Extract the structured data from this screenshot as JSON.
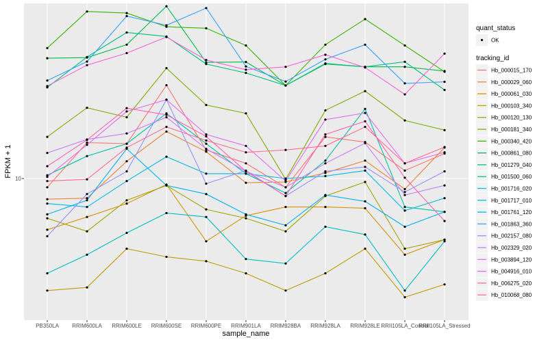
{
  "chart_data": {
    "type": "line",
    "title": "",
    "xlabel": "sample_name",
    "ylabel": "FPKM + 1",
    "y_scale": "log10",
    "y_ticks": [
      10
    ],
    "y_tick_labels": [
      "10-"
    ],
    "ylim": [
      1.8,
      83
    ],
    "grid": true,
    "legend_position": "right",
    "categories": [
      "PB350LA",
      "RRIM600LA",
      "RRIM600LE",
      "RRIM600SE",
      "RRIM600PE",
      "RRIM901LA",
      "RRIM928BA",
      "RRIM928LA",
      "RRIM928LE",
      "RRII105LA_Control",
      "RRII105LA_Stressed"
    ],
    "category_labels": [
      "PB350LA",
      "RRIM600LA",
      "RRIM600LE",
      "RRIM600SE",
      "RRIM600PE",
      "RRIM901LA",
      "RRIM928BA",
      "RRIM928LA",
      "RRIM928LE",
      "RRII105LA_Control",
      "RRII105LA_Stressed"
    ],
    "legend_quant": {
      "title": "quant_status",
      "items": [
        {
          "label": "OK"
        }
      ]
    },
    "legend_title": "tracking_id",
    "series": [
      {
        "name": "Hb_000015_170",
        "color": "#F8766D",
        "values": [
          9.0,
          15.4,
          15.2,
          30.7,
          14.1,
          12.0,
          9.0,
          16.5,
          15.5,
          11.0,
          13.5
        ]
      },
      {
        "name": "Hb_000029_060",
        "color": "#EA8331",
        "values": [
          7.8,
          7.9,
          12.3,
          17.6,
          13.8,
          9.5,
          9.6,
          10.7,
          12.4,
          8.8,
          14.5
        ]
      },
      {
        "name": "Hb_000061_030",
        "color": "#D89000",
        "values": [
          5.4,
          6.3,
          7.4,
          9.3,
          4.7,
          6.4,
          7.1,
          7.1,
          7.0,
          4.0,
          4.8
        ]
      },
      {
        "name": "Hb_000103_340",
        "color": "#C09B00",
        "values": [
          2.6,
          2.7,
          4.3,
          3.9,
          3.7,
          3.2,
          2.6,
          3.2,
          4.3,
          2.4,
          2.8
        ]
      },
      {
        "name": "Hb_000120_130",
        "color": "#A3A500",
        "values": [
          6.2,
          5.3,
          7.7,
          9.2,
          6.9,
          6.2,
          5.3,
          8.1,
          9.6,
          4.3,
          4.8
        ]
      },
      {
        "name": "Hb_000181_340",
        "color": "#7CAE00",
        "values": [
          16.5,
          23.4,
          20.9,
          37.7,
          24.2,
          21.9,
          9.9,
          22.7,
          28.6,
          20.1,
          17.9
        ]
      },
      {
        "name": "Hb_000340_420",
        "color": "#39B600",
        "values": [
          48.0,
          74.5,
          73.1,
          62.0,
          60.9,
          49.5,
          30.6,
          50.0,
          68.0,
          49.5,
          36.1
        ]
      },
      {
        "name": "Hb_000861_080",
        "color": "#00BB4E",
        "values": [
          42.5,
          42.8,
          50.0,
          79.4,
          40.4,
          40.6,
          30.6,
          39.6,
          38.3,
          38.3,
          36.4
        ]
      },
      {
        "name": "Hb_001279_040",
        "color": "#00BF7D",
        "values": [
          29.9,
          43.1,
          57.9,
          55.2,
          39.6,
          35.6,
          30.6,
          39.9,
          38.3,
          40.7,
          29.0
        ]
      },
      {
        "name": "Hb_001500_060",
        "color": "#00C1A3",
        "values": [
          10.4,
          13.1,
          15.2,
          21.9,
          15.2,
          10.6,
          8.4,
          12.4,
          23.1,
          7.1,
          6.7
        ]
      },
      {
        "name": "Hb_001716_020",
        "color": "#00BFC4",
        "values": [
          3.2,
          4.0,
          5.2,
          6.6,
          6.3,
          3.8,
          3.6,
          5.6,
          5.1,
          2.6,
          4.7
        ]
      },
      {
        "name": "Hb_001717_010",
        "color": "#00BAE0",
        "values": [
          7.4,
          7.1,
          9.7,
          13.0,
          10.6,
          10.6,
          10.0,
          10.3,
          11.0,
          6.8,
          7.9
        ]
      },
      {
        "name": "Hb_001761_120",
        "color": "#00B0F6",
        "values": [
          6.5,
          7.7,
          14.3,
          9.2,
          8.3,
          6.5,
          5.7,
          8.2,
          7.6,
          5.6,
          6.7
        ]
      },
      {
        "name": "Hb_001863_360",
        "color": "#35A2FF",
        "values": [
          32.5,
          40.8,
          70.5,
          63.1,
          77.6,
          38.5,
          32.1,
          41.9,
          50.0,
          31.4,
          32.0
        ]
      },
      {
        "name": "Hb_002157_080",
        "color": "#9590FF",
        "values": [
          5.0,
          8.3,
          10.9,
          25.8,
          9.4,
          11.0,
          8.1,
          10.9,
          11.5,
          8.5,
          10.9
        ]
      },
      {
        "name": "Hb_002329_020",
        "color": "#C77CFF",
        "values": [
          13.6,
          16.0,
          17.2,
          20.9,
          14.3,
          10.9,
          9.0,
          12.0,
          15.3,
          8.2,
          9.2
        ]
      },
      {
        "name": "Hb_003894_120",
        "color": "#E76BF3",
        "values": [
          10.2,
          15.0,
          22.4,
          25.8,
          17.0,
          14.8,
          9.7,
          20.3,
          22.0,
          12.0,
          13.7
        ]
      },
      {
        "name": "Hb_004916_010",
        "color": "#FA62DB",
        "values": [
          30.4,
          39.1,
          45.2,
          54.8,
          41.6,
          37.0,
          38.3,
          44.3,
          38.0,
          27.5,
          44.9
        ]
      },
      {
        "name": "Hb_006275_020",
        "color": "#FF62BC",
        "values": [
          11.6,
          15.9,
          23.3,
          21.5,
          16.6,
          10.9,
          8.1,
          17.0,
          19.9,
          10.1,
          6.0
        ]
      },
      {
        "name": "Hb_010068_080",
        "color": "#FF6C91",
        "values": [
          9.7,
          9.9,
          14.5,
          18.6,
          15.8,
          13.7,
          14.1,
          14.8,
          18.6,
          12.0,
          14.6
        ]
      }
    ]
  }
}
